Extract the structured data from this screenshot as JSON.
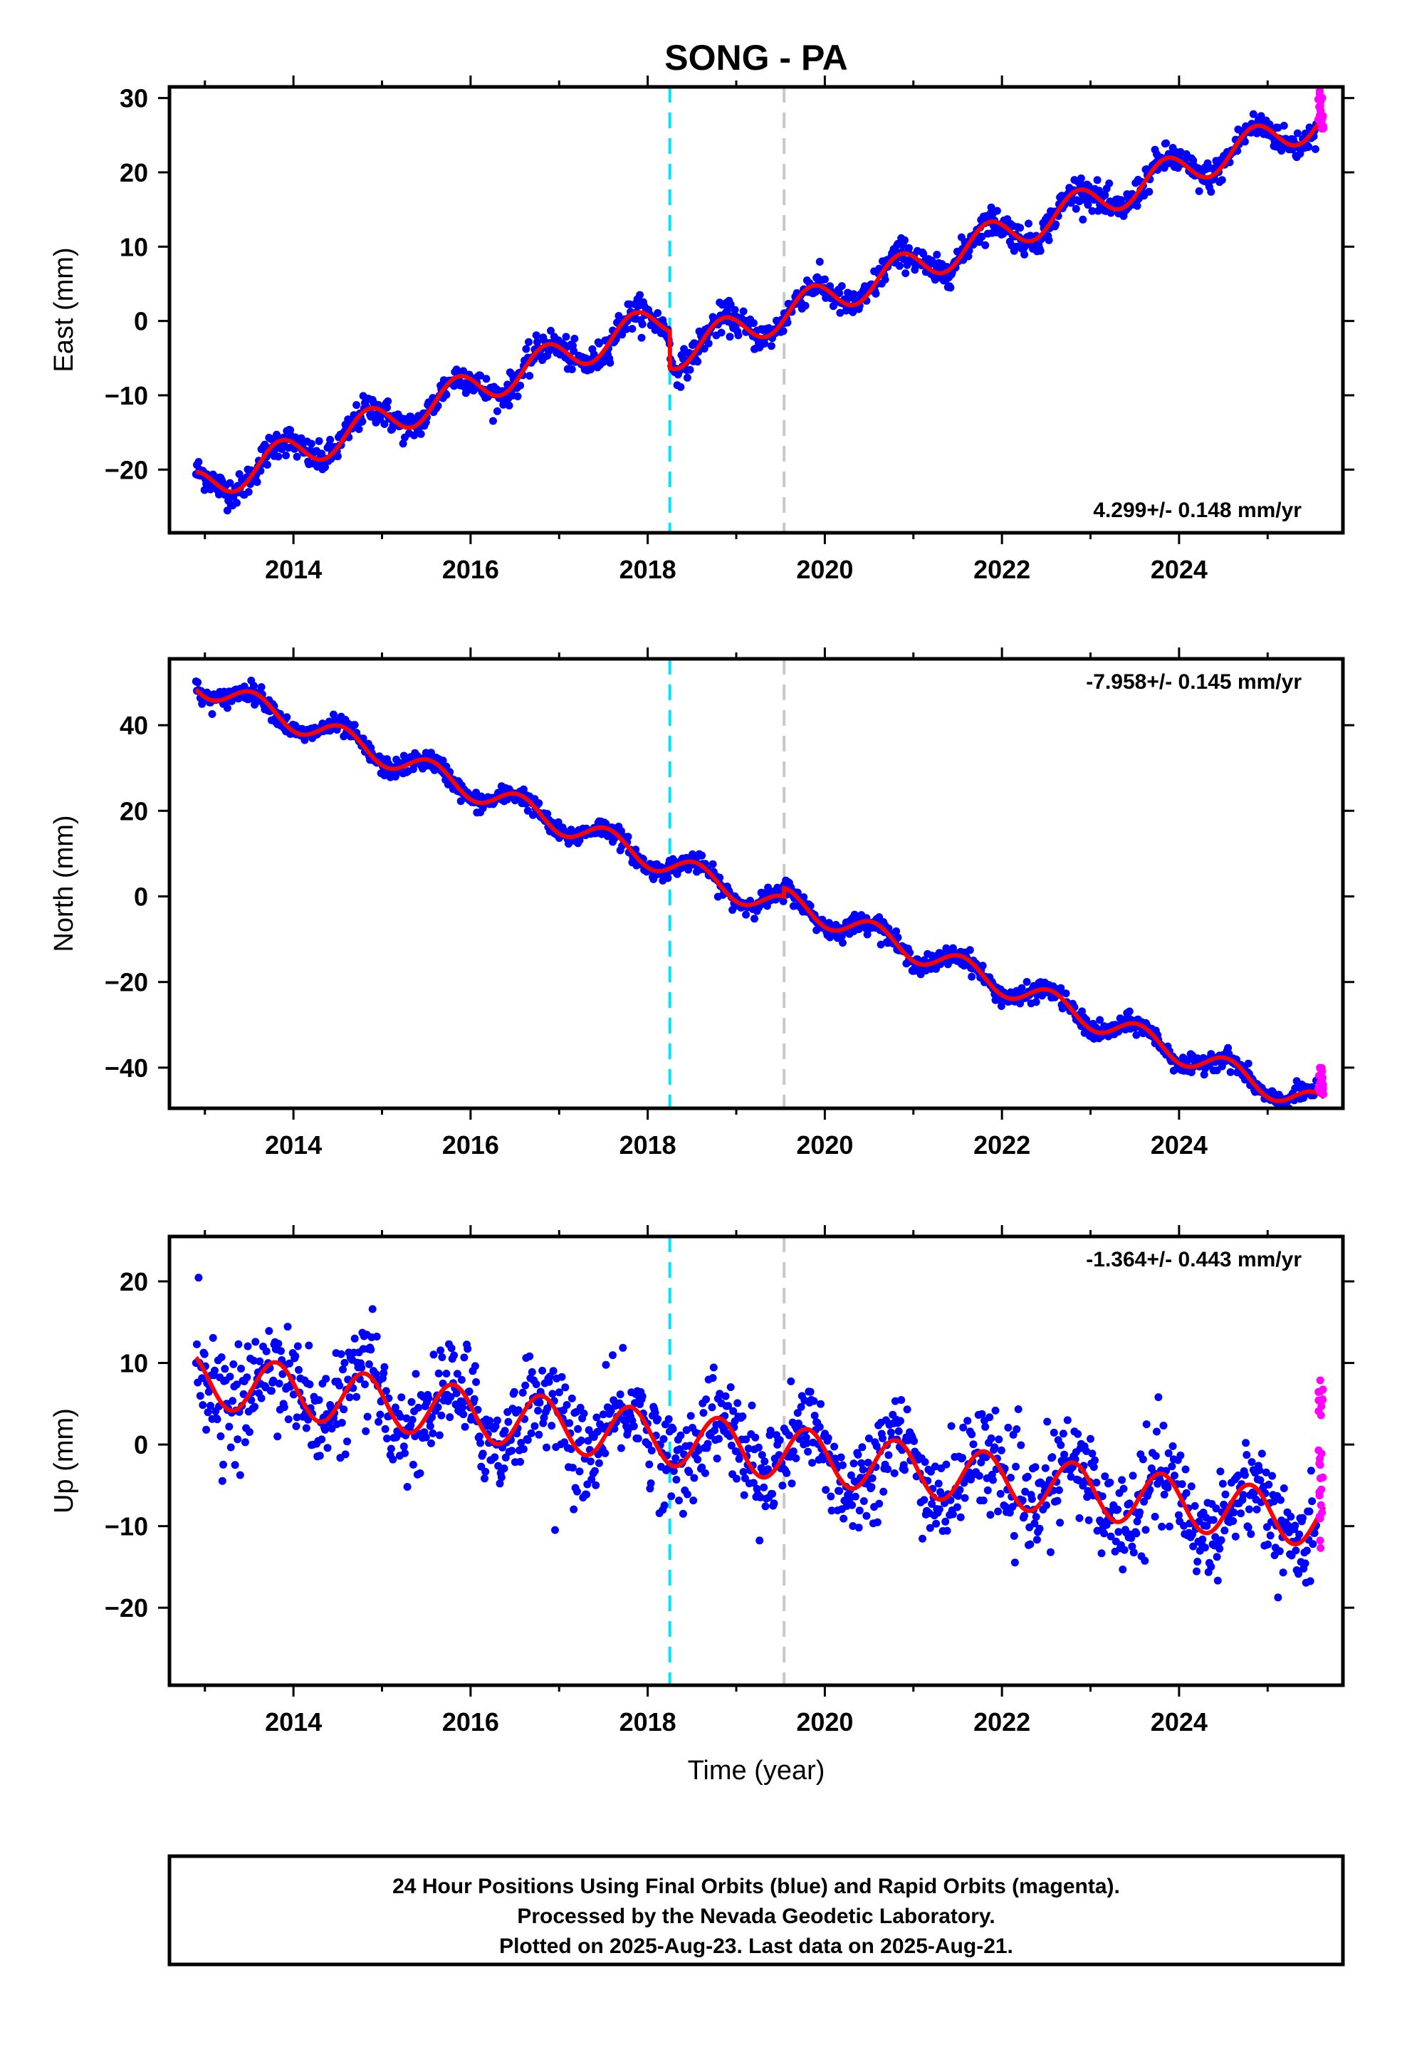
{
  "figure": {
    "title": "SONG - PA",
    "footer": {
      "line1": "24 Hour Positions Using Final Orbits (blue) and Rapid Orbits (magenta).",
      "line2": "Processed by the Nevada Geodetic Laboratory.",
      "line3": "Plotted on 2025-Aug-23. Last data on 2025-Aug-21."
    },
    "colors": {
      "final_orbits": "#0000ff",
      "rapid_orbits": "#ff00ff",
      "model_fit": "#ff0000",
      "event_line_1": "#00e5ff",
      "event_line_2": "#c8c8c8"
    }
  },
  "chart_data": [
    {
      "type": "scatter",
      "component": "east",
      "ylabel": "East (mm)",
      "xlabel": "",
      "rate_label": "4.299+/- 0.148 mm/yr",
      "rate_position": "bottom-right",
      "xlim": [
        2012.6,
        2025.85
      ],
      "ylim": [
        -28.5,
        31.5
      ],
      "x_ticks": [
        2014,
        2016,
        2018,
        2020,
        2022,
        2024
      ],
      "y_ticks": [
        -20,
        -10,
        0,
        10,
        20,
        30
      ],
      "x_tick_labels": [
        "2014",
        "2016",
        "2018",
        "2020",
        "2022",
        "2024"
      ],
      "y_tick_labels": [
        "−20",
        "−10",
        "0",
        "10",
        "20",
        "30"
      ],
      "event_lines": [
        {
          "x": 2018.25,
          "style": "dashed",
          "color": "cyan"
        },
        {
          "x": 2019.54,
          "style": "dashed",
          "color": "gray"
        }
      ],
      "model": {
        "start_x": 2012.9,
        "start_y": -22.5,
        "rate": 4.299,
        "annual_amplitude": 2.3,
        "annual_phase_year": 2012.6,
        "offsets": [
          {
            "x": 2018.25,
            "dy": -5.0
          }
        ]
      },
      "scatter_noise": 1.0,
      "rapid_range": [
        25.6,
        31.2
      ],
      "series": [
        {
          "name": "Final Orbits (blue)",
          "values": "daily positions 2012.9–2025.55"
        },
        {
          "name": "Rapid Orbits (magenta)",
          "values": "2025.55–2025.64"
        }
      ]
    },
    {
      "type": "scatter",
      "component": "north",
      "ylabel": "North (mm)",
      "xlabel": "",
      "rate_label": "-7.958+/- 0.145 mm/yr",
      "rate_position": "top-right",
      "xlim": [
        2012.6,
        2025.85
      ],
      "ylim": [
        -49.5,
        55.5
      ],
      "x_ticks": [
        2014,
        2016,
        2018,
        2020,
        2022,
        2024
      ],
      "y_ticks": [
        -40,
        -20,
        0,
        20,
        40
      ],
      "x_tick_labels": [
        "2014",
        "2016",
        "2018",
        "2020",
        "2022",
        "2024"
      ],
      "y_tick_labels": [
        "−40",
        "−20",
        "0",
        "20",
        "40"
      ],
      "event_lines": [
        {
          "x": 2018.25,
          "style": "dashed",
          "color": "cyan"
        },
        {
          "x": 2019.54,
          "style": "dashed",
          "color": "gray"
        }
      ],
      "model": {
        "start_x": 2012.9,
        "start_y": 50.0,
        "rate": -7.958,
        "annual_amplitude": 2.8,
        "annual_phase_year": 2013.3,
        "offsets": [
          {
            "x": 2019.54,
            "dy": 2.0
          }
        ]
      },
      "scatter_noise": 1.1,
      "rapid_range": [
        -46.5,
        -40.0
      ],
      "series": [
        {
          "name": "Final Orbits (blue)",
          "values": "daily positions 2012.9–2025.55"
        },
        {
          "name": "Rapid Orbits (magenta)",
          "values": "2025.55–2025.64"
        }
      ]
    },
    {
      "type": "scatter",
      "component": "up",
      "ylabel": "Up (mm)",
      "xlabel": "Time (year)",
      "rate_label": "-1.364+/- 0.443 mm/yr",
      "rate_position": "top-right",
      "xlim": [
        2012.6,
        2025.85
      ],
      "ylim": [
        -29.5,
        25.5
      ],
      "x_ticks": [
        2014,
        2016,
        2018,
        2020,
        2022,
        2024
      ],
      "y_ticks": [
        -20,
        -10,
        0,
        10,
        20
      ],
      "x_tick_labels": [
        "2014",
        "2016",
        "2018",
        "2020",
        "2022",
        "2024"
      ],
      "y_tick_labels": [
        "−20",
        "−10",
        "0",
        "10",
        "20"
      ],
      "event_lines": [
        {
          "x": 2018.25,
          "style": "dashed",
          "color": "cyan"
        },
        {
          "x": 2019.54,
          "style": "dashed",
          "color": "gray"
        }
      ],
      "model": {
        "start_x": 2012.9,
        "start_y": 8.0,
        "rate": -1.364,
        "annual_amplitude": 3.3,
        "annual_phase_year": 2013.55,
        "offsets": []
      },
      "scatter_noise": 3.0,
      "rapid_range": [
        -13.0,
        8.2
      ],
      "series": [
        {
          "name": "Final Orbits (blue)",
          "values": "daily positions 2012.9–2025.55"
        },
        {
          "name": "Rapid Orbits (magenta)",
          "values": "2025.55–2025.64"
        }
      ]
    }
  ]
}
